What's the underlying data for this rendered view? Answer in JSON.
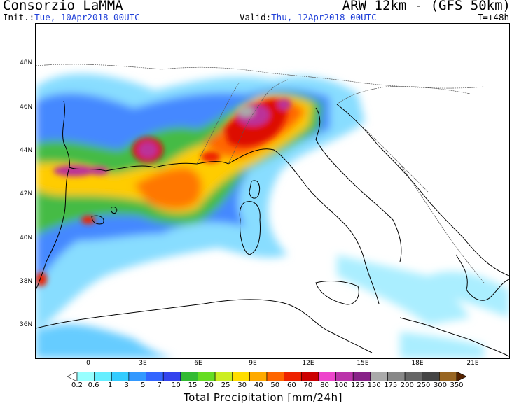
{
  "header": {
    "org": "Consorzio LaMMA",
    "model": "ARW 12km - (GFS 50km)",
    "init_label": "Init.:",
    "init_value": "Tue, 10Apr2018 00UTC",
    "valid_label": "Valid:",
    "valid_value": "Thu, 12Apr2018 00UTC",
    "lead": "T=+48h"
  },
  "map": {
    "lat_labels": [
      "48N",
      "46N",
      "44N",
      "42N",
      "40N",
      "38N",
      "36N"
    ],
    "lon_labels": [
      "0",
      "3E",
      "6E",
      "9E",
      "12E",
      "15E",
      "18E",
      "21E"
    ]
  },
  "colorbar": {
    "labels": [
      "0.2",
      "0.6",
      "1",
      "3",
      "5",
      "7",
      "10",
      "15",
      "20",
      "25",
      "30",
      "40",
      "50",
      "60",
      "70",
      "80",
      "100",
      "125",
      "150",
      "175",
      "200",
      "250",
      "300",
      "350"
    ],
    "colors": [
      "#99ffff",
      "#66eeff",
      "#33ccff",
      "#3399ff",
      "#3366ff",
      "#3344ee",
      "#33bb33",
      "#66dd22",
      "#ccee22",
      "#ffdd00",
      "#ffaa00",
      "#ff6600",
      "#ee2200",
      "#cc0000",
      "#ee44cc",
      "#bb33aa",
      "#882288",
      "#aaaaaa",
      "#888888",
      "#666666",
      "#444444",
      "#996622",
      "#774411",
      "#552200"
    ],
    "title": "Total Precipitation [mm/24h]"
  }
}
